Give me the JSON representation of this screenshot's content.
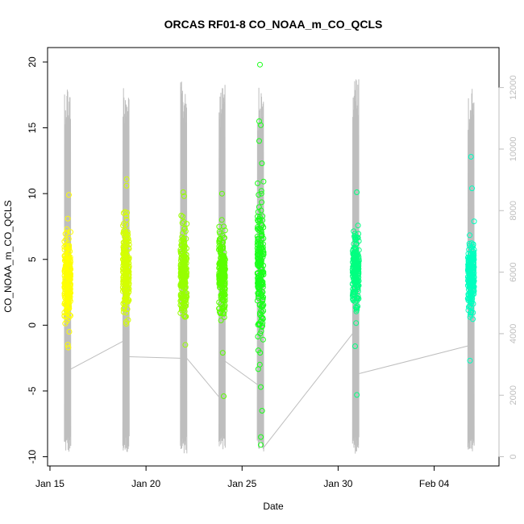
{
  "chart_data": {
    "type": "scatter",
    "title": "ORCAS RF01-8 CO_NOAA_m_CO_QCLS",
    "xlabel": "Date",
    "ylabel": "CO_NOAA_m_CO_QCLS",
    "x_ticks": [
      {
        "date": "2016-01-15",
        "label": "Jan 15"
      },
      {
        "date": "2016-01-20",
        "label": "Jan 20"
      },
      {
        "date": "2016-01-25",
        "label": "Jan 25"
      },
      {
        "date": "2016-01-30",
        "label": "Jan 30"
      },
      {
        "date": "2016-02-04",
        "label": "Feb 04"
      }
    ],
    "xlim": [
      "2016-01-14T21:00",
      "2016-02-07T09:00"
    ],
    "ylim": [
      -10.7,
      21.1
    ],
    "y_ticks": [
      -10,
      -5,
      0,
      5,
      10,
      15,
      20
    ],
    "y2lim": [
      -300,
      13300
    ],
    "y2_ticks": [
      0,
      2000,
      4000,
      6000,
      8000,
      10000,
      12000
    ],
    "grid": false,
    "legend": "none",
    "secondary_series_color": "#bebebe",
    "flights": [
      {
        "start": "2016-01-15T18:00",
        "end": "2016-01-16T02:00",
        "color": "#ffff00",
        "y_center": 3.5,
        "y_spread": 2.3,
        "y_min": -1.7,
        "y_max": 10.0,
        "outliers": [
          8.1,
          9.9,
          -1.7
        ]
      },
      {
        "start": "2016-01-18T19:00",
        "end": "2016-01-19T03:00",
        "color": "#d4ff00",
        "y_center": 4.0,
        "y_spread": 2.5,
        "y_min": -0.3,
        "y_max": 11.3,
        "outliers": [
          11.1,
          10.6,
          0.1
        ]
      },
      {
        "start": "2016-01-21T19:00",
        "end": "2016-01-22T03:00",
        "color": "#97ff00",
        "y_center": 4.0,
        "y_spread": 2.2,
        "y_min": -1.6,
        "y_max": 10.2,
        "outliers": [
          10.1,
          9.8,
          -1.5
        ]
      },
      {
        "start": "2016-01-23T19:00",
        "end": "2016-01-24T03:00",
        "color": "#5aff00",
        "y_center": 4.0,
        "y_spread": 2.2,
        "y_min": -5.4,
        "y_max": 10.1,
        "outliers": [
          -5.4,
          10.0,
          -2.1
        ]
      },
      {
        "start": "2016-01-25T19:00",
        "end": "2016-01-26T03:00",
        "color": "#1aff1a",
        "y_center": 4.5,
        "y_spread": 3.5,
        "y_min": -9.1,
        "y_max": 19.8,
        "outliers": [
          19.8,
          15.5,
          15.2,
          14.0,
          12.3,
          -4.7,
          -6.5,
          -8.5,
          -9.1,
          -3.0
        ]
      },
      {
        "start": "2016-01-30T18:00",
        "end": "2016-01-31T02:00",
        "color": "#00ff80",
        "y_center": 4.0,
        "y_spread": 2.0,
        "y_min": -5.3,
        "y_max": 10.1,
        "outliers": [
          -5.3,
          10.1,
          -1.6
        ]
      },
      {
        "start": "2016-02-05T18:00",
        "end": "2016-02-06T02:00",
        "color": "#00ffbf",
        "y_center": 3.8,
        "y_spread": 2.0,
        "y_min": -2.7,
        "y_max": 12.8,
        "outliers": [
          12.8,
          10.4,
          -2.7
        ]
      }
    ],
    "secondary_series": {
      "name": "",
      "y_axis": "right",
      "flight_ranges": [
        {
          "start": "2016-01-15T18:00",
          "end": "2016-01-16T02:00",
          "min": 100,
          "max": 12200
        },
        {
          "start": "2016-01-18T19:00",
          "end": "2016-01-19T03:00",
          "min": 100,
          "max": 12200
        },
        {
          "start": "2016-01-21T19:00",
          "end": "2016-01-22T03:00",
          "min": 100,
          "max": 12200
        },
        {
          "start": "2016-01-23T19:00",
          "end": "2016-01-24T03:00",
          "min": 100,
          "max": 12100
        },
        {
          "start": "2016-01-25T19:00",
          "end": "2016-01-26T03:00",
          "min": 100,
          "max": 12000
        },
        {
          "start": "2016-01-30T18:00",
          "end": "2016-01-31T02:00",
          "min": 100,
          "max": 12400
        },
        {
          "start": "2016-02-05T18:00",
          "end": "2016-02-06T02:00",
          "min": 100,
          "max": 12000
        }
      ],
      "ground_segments": [
        {
          "x0": "2016-01-16T02:00",
          "y0": 2850,
          "x1": "2016-01-18T19:00",
          "y1": 3750
        },
        {
          "x0": "2016-01-19T03:00",
          "y0": 3250,
          "x1": "2016-01-21T19:00",
          "y1": 3200
        },
        {
          "x0": "2016-01-22T03:00",
          "y0": 3200,
          "x1": "2016-01-23T19:00",
          "y1": 1950
        },
        {
          "x0": "2016-01-24T03:00",
          "y0": 3100,
          "x1": "2016-01-25T19:00",
          "y1": 2350
        },
        {
          "x0": "2016-01-26T03:00",
          "y0": 300,
          "x1": "2016-01-30T18:00",
          "y1": 4000
        },
        {
          "x0": "2016-01-31T02:00",
          "y0": 2700,
          "x1": "2016-02-05T18:00",
          "y1": 3600
        }
      ]
    }
  }
}
